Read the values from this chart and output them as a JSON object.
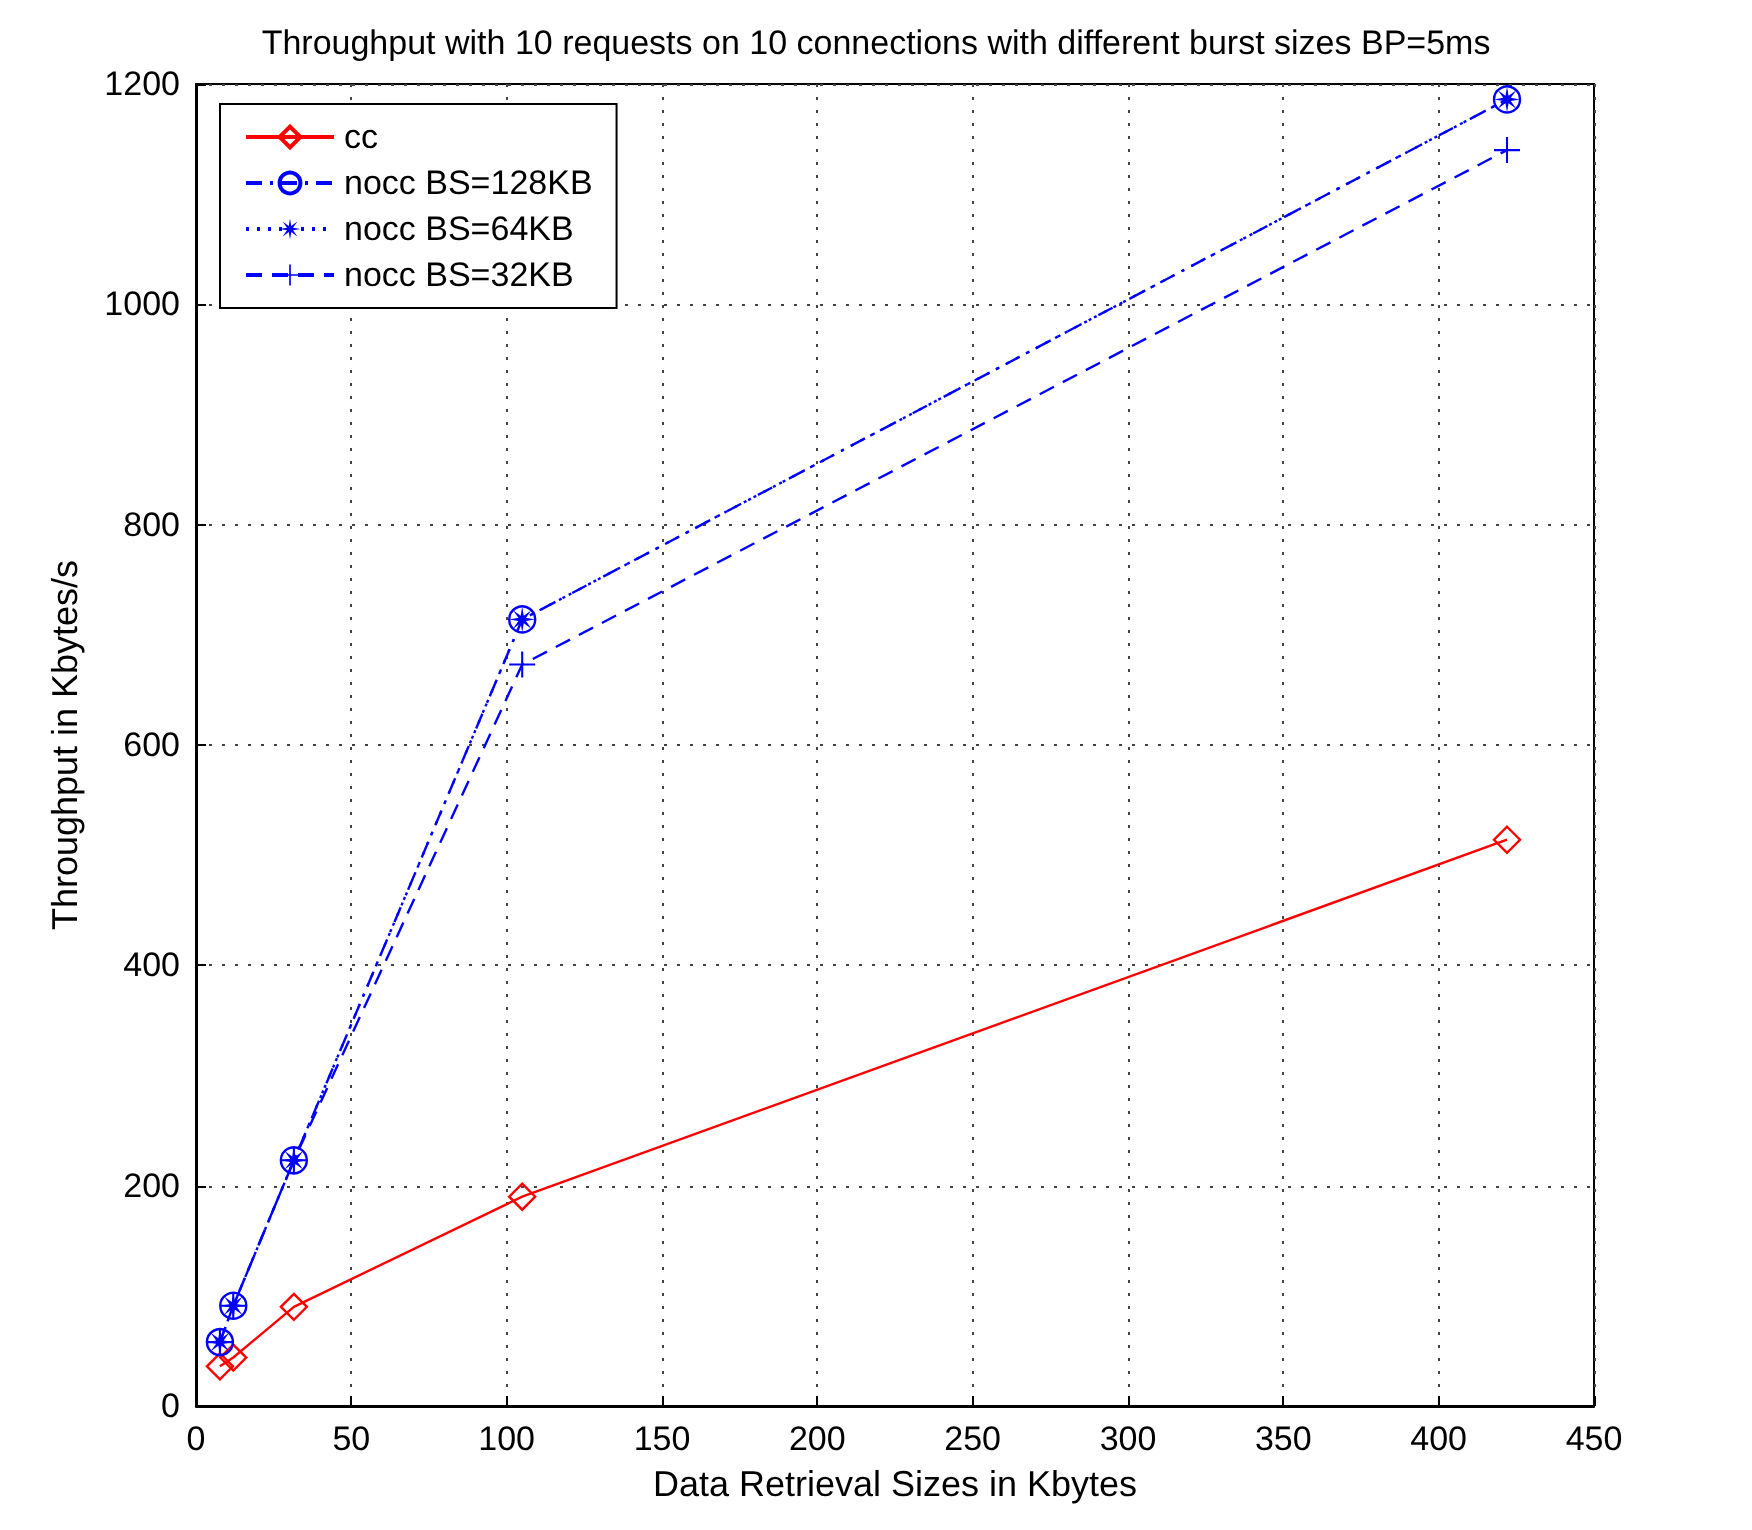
{
  "chart_data": {
    "type": "line",
    "title": "Throughput with 10 requests on 10 connections with different burst sizes BP=5ms",
    "xlabel": "Data Retrieval Sizes in Kbytes",
    "ylabel": "Throughput in Kbytes/s",
    "x": [
      7.7,
      12,
      31.5,
      105,
      422
    ],
    "series": [
      {
        "name": "cc",
        "color": "#ff0000",
        "marker": "diamond",
        "line_style": "solid",
        "values": [
          36,
          44,
          90,
          190,
          514
        ]
      },
      {
        "name": "nocc BS=128KB",
        "color": "#0000ff",
        "marker": "circle",
        "line_style": "dashdot",
        "values": [
          58,
          91,
          223,
          714,
          1186
        ]
      },
      {
        "name": "nocc BS=64KB",
        "color": "#0000ff",
        "marker": "star",
        "line_style": "dotted",
        "values": [
          58,
          91,
          223,
          714,
          1186
        ]
      },
      {
        "name": "nocc BS=32KB",
        "color": "#0000ff",
        "marker": "cross",
        "line_style": "dashed",
        "values": [
          58,
          91,
          223,
          673,
          1140
        ]
      }
    ],
    "xlim": [
      0,
      450
    ],
    "xticks": [
      0,
      50,
      100,
      150,
      200,
      250,
      300,
      350,
      400,
      450
    ],
    "ylim": [
      0,
      1200
    ],
    "yticks": [
      0,
      200,
      400,
      600,
      800,
      1000,
      1200
    ],
    "grid": true,
    "legend": "top left"
  }
}
